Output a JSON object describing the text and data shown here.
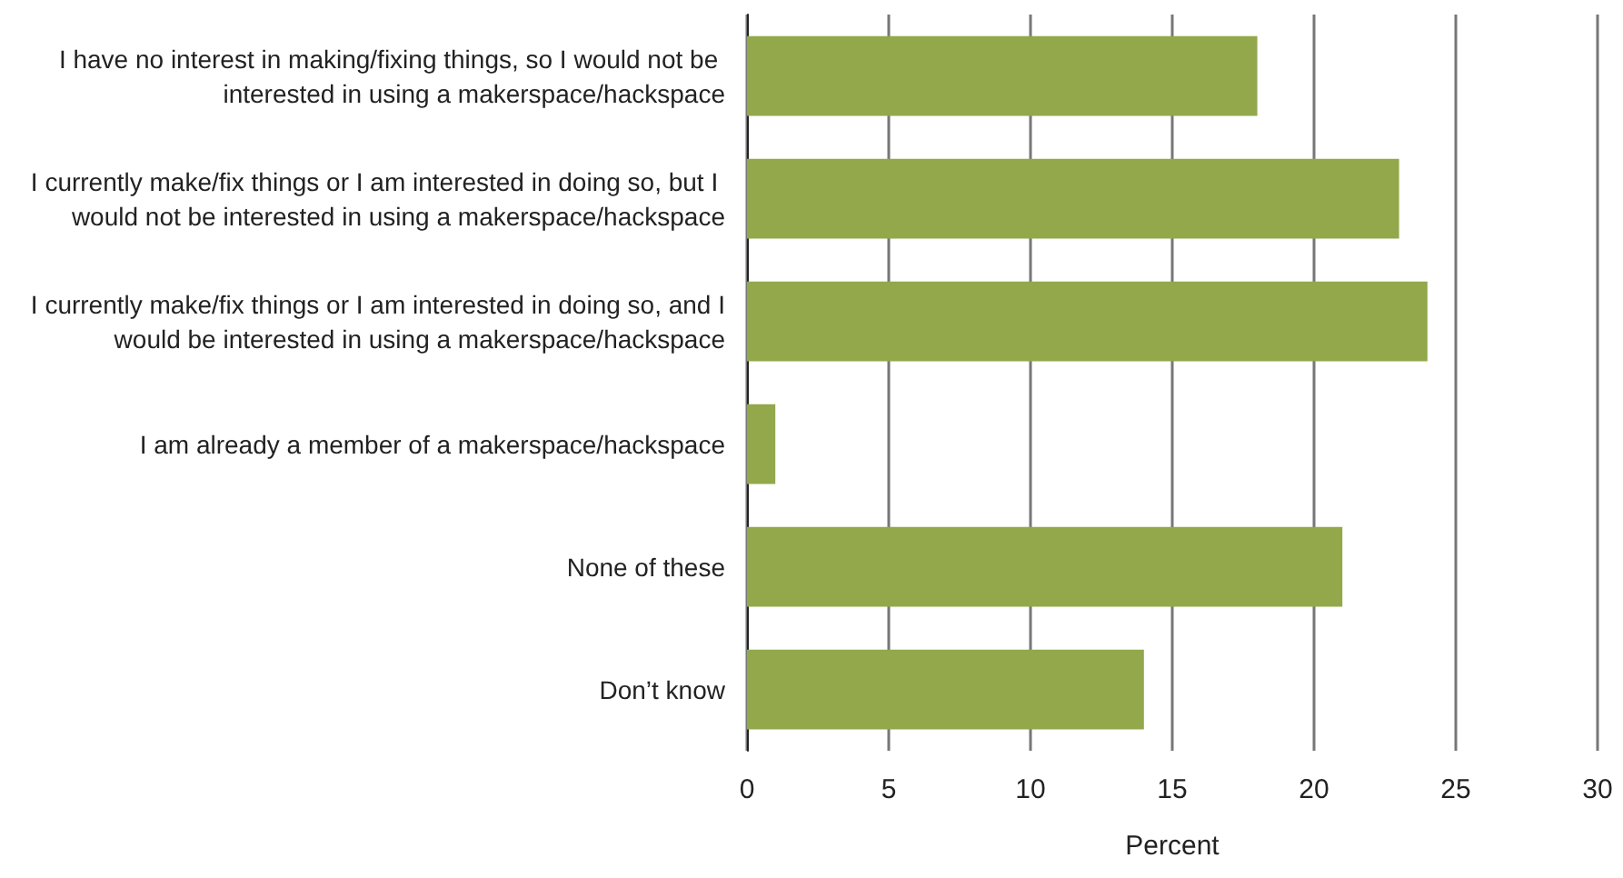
{
  "chart_data": {
    "type": "bar",
    "orientation": "horizontal",
    "xlabel": "Percent",
    "categories": [
      "I have no interest in making/fixing things, so I would not be interested in using a makerspace/hackspace",
      "I currently make/fix things or I am interested in doing so, but I would not be interested in using a makerspace/hackspace",
      "I currently make/fix things or I am interested in doing so, and I would be interested in using a makerspace/hackspace",
      "I am already a member of a makerspace/hackspace",
      "None of these",
      "Don’t know"
    ],
    "values": [
      18,
      23,
      24,
      1,
      21,
      14
    ],
    "color": "#92a84b",
    "xlim": [
      0,
      30
    ],
    "xticks": [
      0,
      5,
      10,
      15,
      20,
      25,
      30
    ],
    "grid": "x"
  }
}
